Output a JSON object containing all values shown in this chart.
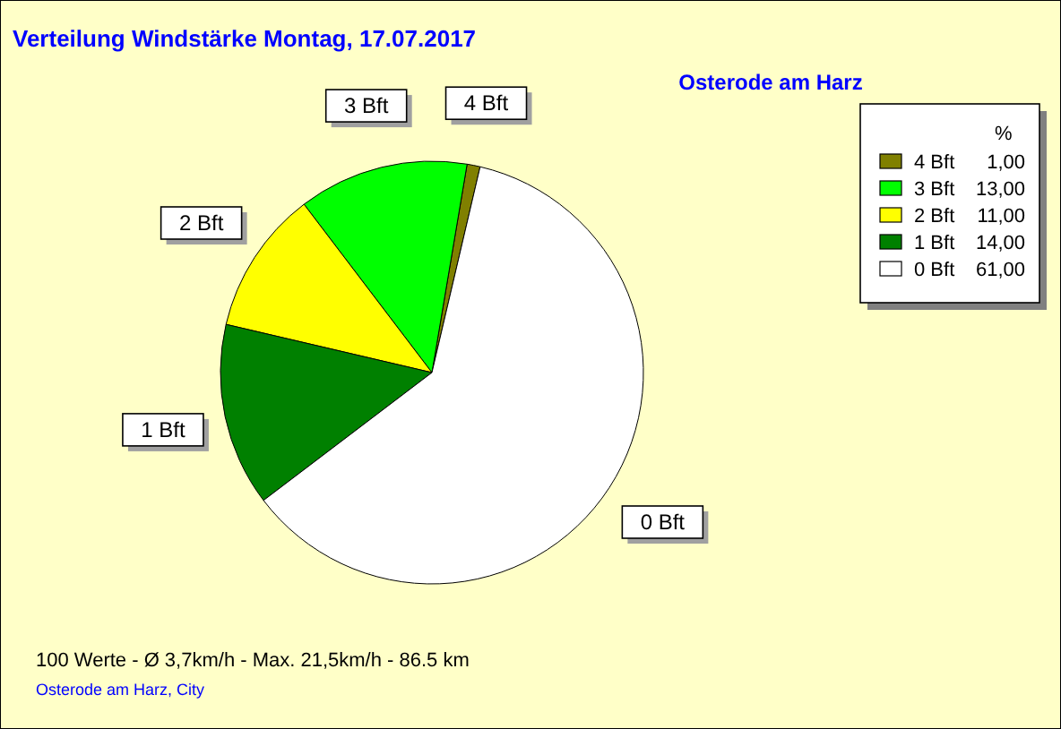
{
  "chart_data": {
    "type": "pie",
    "title": "Verteilung Windstärke  Montag, 17.07.2017",
    "subtitle": "Osterode am Harz",
    "legend_title": "%",
    "legend": "top right",
    "categories": [
      "4 Bft",
      "3 Bft",
      "2 Bft",
      "1 Bft",
      "0 Bft"
    ],
    "values": [
      1,
      13,
      11,
      14,
      61
    ],
    "colors": [
      "#808000",
      "#00ff00",
      "#ffff00",
      "#008000",
      "#ffffff"
    ],
    "value_labels": [
      "1,00",
      "13,00",
      "11,00",
      "14,00",
      "61,00"
    ],
    "annotations": [
      "100 Werte   -   Ø 3,7km/h  -  Max. 21,5km/h   -   86.5 km",
      "Osterode am Harz, City"
    ]
  }
}
